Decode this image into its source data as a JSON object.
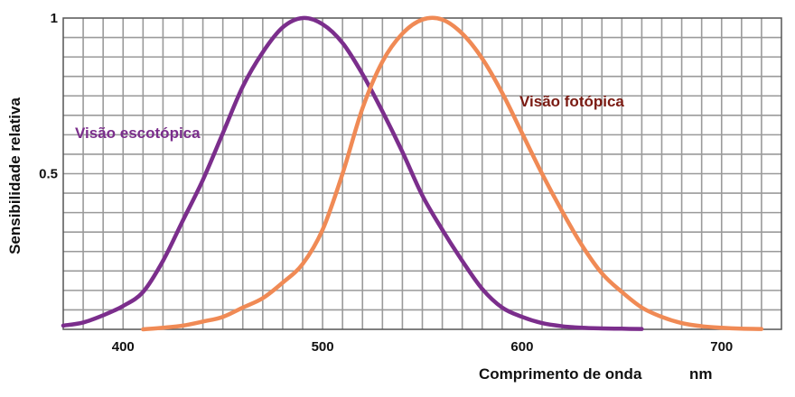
{
  "chart_data": {
    "type": "line",
    "title": "",
    "xlabel": "Comprimento de onda",
    "xunit": "nm",
    "ylabel": "Sensibilidade relativa",
    "xlim": [
      370,
      730
    ],
    "ylim": [
      0,
      1
    ],
    "x_ticks": [
      400,
      500,
      600,
      700
    ],
    "x_tick_labels": [
      "400",
      "500",
      "600",
      "700"
    ],
    "y_ticks": [
      0.5,
      1
    ],
    "y_tick_labels": [
      "0.5",
      "1"
    ],
    "grid": true,
    "series": [
      {
        "name": "Visão escotópica",
        "color": "#7b2e8c",
        "x": [
          370,
          380,
          390,
          400,
          410,
          420,
          430,
          440,
          450,
          460,
          470,
          480,
          490,
          500,
          510,
          520,
          530,
          540,
          550,
          560,
          570,
          580,
          590,
          600,
          610,
          620,
          630,
          640,
          650,
          660
        ],
        "y": [
          0.012,
          0.022,
          0.045,
          0.075,
          0.12,
          0.22,
          0.35,
          0.48,
          0.63,
          0.78,
          0.89,
          0.97,
          1.0,
          0.98,
          0.92,
          0.82,
          0.7,
          0.57,
          0.43,
          0.32,
          0.22,
          0.13,
          0.07,
          0.04,
          0.02,
          0.01,
          0.005,
          0.003,
          0.002,
          0.001
        ]
      },
      {
        "name": "Visão fotópica",
        "color": "#f08a55",
        "x": [
          410,
          420,
          430,
          440,
          450,
          460,
          470,
          480,
          490,
          500,
          510,
          520,
          530,
          540,
          550,
          560,
          570,
          580,
          590,
          600,
          610,
          620,
          630,
          640,
          650,
          660,
          670,
          680,
          690,
          700,
          710,
          720
        ],
        "y": [
          0.0,
          0.005,
          0.012,
          0.025,
          0.04,
          0.07,
          0.1,
          0.15,
          0.21,
          0.32,
          0.5,
          0.71,
          0.86,
          0.95,
          0.995,
          0.995,
          0.95,
          0.87,
          0.76,
          0.63,
          0.5,
          0.38,
          0.27,
          0.18,
          0.12,
          0.07,
          0.04,
          0.02,
          0.01,
          0.005,
          0.002,
          0.001
        ]
      }
    ],
    "annotations": [
      {
        "text": "Visão escotópica",
        "series": 0
      },
      {
        "text": "Visão fotópica",
        "series": 1
      }
    ]
  }
}
